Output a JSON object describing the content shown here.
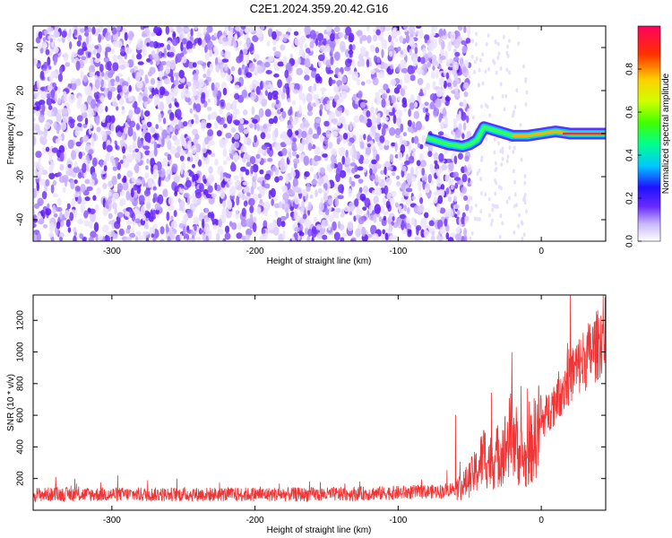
{
  "title": "C2E1.2024.359.20.42.G16",
  "chart_data": [
    {
      "type": "heatmap",
      "xlabel": "Height of straight line (km)",
      "ylabel": "Frequency (Hz)",
      "xlim": [
        -355,
        45
      ],
      "ylim": [
        -50,
        50
      ],
      "xticks": [
        -300,
        -200,
        -100,
        0
      ],
      "yticks": [
        -40,
        -20,
        0,
        20,
        40
      ],
      "colorbar": {
        "label": "Normalized spectral amplitude",
        "range": [
          0,
          1
        ],
        "ticks": [
          0.0,
          0.2,
          0.4,
          0.6,
          0.8
        ]
      },
      "ridge": [
        {
          "x": -80,
          "y": -2
        },
        {
          "x": -65,
          "y": -5
        },
        {
          "x": -55,
          "y": -6
        },
        {
          "x": -50,
          "y": -5
        },
        {
          "x": -45,
          "y": -3
        },
        {
          "x": -40,
          "y": 3
        },
        {
          "x": -35,
          "y": 2
        },
        {
          "x": -30,
          "y": 1
        },
        {
          "x": -20,
          "y": -1
        },
        {
          "x": -10,
          "y": -1
        },
        {
          "x": 0,
          "y": 0
        },
        {
          "x": 10,
          "y": 1
        },
        {
          "x": 20,
          "y": 0
        },
        {
          "x": 45,
          "y": 0
        }
      ]
    },
    {
      "type": "line",
      "xlabel": "Height of straight line (km)",
      "ylabel": "SNR (10 * v/v)",
      "xlim": [
        -355,
        45
      ],
      "ylim": [
        0,
        1360
      ],
      "xticks": [
        -300,
        -200,
        -100,
        0
      ],
      "yticks": [
        200,
        400,
        600,
        800,
        1000,
        1200
      ],
      "color": "#ef3535",
      "series": [
        {
          "x": [
            -355,
            -300,
            -250,
            -200,
            -150,
            -100,
            -70,
            -55,
            -45,
            -40,
            -35,
            -30,
            -25,
            -20,
            -15,
            -10,
            -5,
            0,
            10,
            20,
            30,
            40,
            45
          ],
          "values": [
            100,
            100,
            100,
            100,
            100,
            110,
            120,
            150,
            250,
            350,
            300,
            350,
            400,
            500,
            350,
            300,
            450,
            550,
            700,
            850,
            950,
            1050,
            1150
          ]
        }
      ]
    }
  ]
}
